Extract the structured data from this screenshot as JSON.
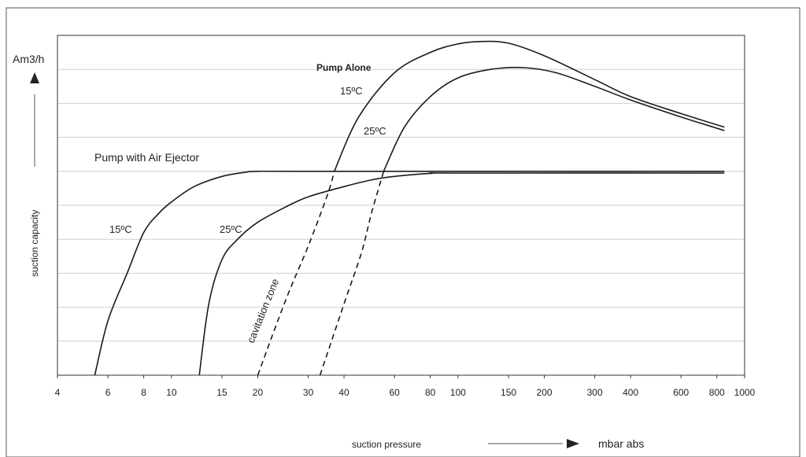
{
  "chart_data": {
    "type": "line",
    "xscale": "log",
    "xlim": [
      4,
      1000
    ],
    "ylim": [
      0,
      10
    ],
    "grid": "horizontal",
    "x_ticks": [
      "4",
      "6",
      "8",
      "10",
      "15",
      "20",
      "30",
      "40",
      "60",
      "80",
      "100",
      "150",
      "200",
      "300",
      "400",
      "600",
      "800",
      "1000"
    ],
    "x_tick_values": [
      4,
      6,
      8,
      10,
      15,
      20,
      30,
      40,
      60,
      80,
      100,
      150,
      200,
      300,
      400,
      600,
      800,
      1000
    ],
    "ylabel_unit": "Am3/h",
    "ylabel": "suction capacity",
    "xlabel": "suction pressure",
    "xlabel_unit": "mbar abs",
    "series": [
      {
        "name": "Pump Alone 15ºC",
        "dash": false,
        "points": [
          [
            37,
            6.0
          ],
          [
            45,
            7.6
          ],
          [
            60,
            8.9
          ],
          [
            80,
            9.5
          ],
          [
            100,
            9.75
          ],
          [
            120,
            9.82
          ],
          [
            150,
            9.77
          ],
          [
            200,
            9.4
          ],
          [
            300,
            8.7
          ],
          [
            400,
            8.2
          ],
          [
            600,
            7.7
          ],
          [
            850,
            7.3
          ]
        ]
      },
      {
        "name": "Pump Alone 25ºC",
        "dash": false,
        "points": [
          [
            55,
            6.0
          ],
          [
            65,
            7.3
          ],
          [
            80,
            8.2
          ],
          [
            100,
            8.75
          ],
          [
            130,
            9.0
          ],
          [
            170,
            9.05
          ],
          [
            220,
            8.9
          ],
          [
            300,
            8.5
          ],
          [
            400,
            8.1
          ],
          [
            600,
            7.6
          ],
          [
            850,
            7.2
          ]
        ]
      },
      {
        "name": "Pump with Air Ejector 15ºC",
        "dash": false,
        "points": [
          [
            5.4,
            0
          ],
          [
            6,
            1.6
          ],
          [
            7,
            3.0
          ],
          [
            8,
            4.2
          ],
          [
            9,
            4.75
          ],
          [
            10,
            5.1
          ],
          [
            12,
            5.55
          ],
          [
            15,
            5.85
          ],
          [
            18,
            5.97
          ],
          [
            20,
            6.0
          ],
          [
            30,
            6.0
          ],
          [
            100,
            6.0
          ],
          [
            850,
            6.0
          ]
        ]
      },
      {
        "name": "Pump with Air Ejector 25ºC",
        "dash": false,
        "points": [
          [
            12.5,
            0
          ],
          [
            13.5,
            2.1
          ],
          [
            15,
            3.4
          ],
          [
            17,
            4.0
          ],
          [
            20,
            4.5
          ],
          [
            25,
            4.95
          ],
          [
            30,
            5.25
          ],
          [
            40,
            5.55
          ],
          [
            50,
            5.75
          ],
          [
            60,
            5.85
          ],
          [
            80,
            5.94
          ],
          [
            100,
            5.95
          ],
          [
            850,
            5.95
          ]
        ]
      },
      {
        "name": "cavitation zone 15ºC",
        "dash": true,
        "points": [
          [
            20,
            0
          ],
          [
            25,
            2.2
          ],
          [
            30,
            3.8
          ],
          [
            35,
            5.3
          ],
          [
            37,
            6.0
          ]
        ]
      },
      {
        "name": "cavitation zone 25ºC",
        "dash": true,
        "points": [
          [
            33,
            0
          ],
          [
            40,
            2.1
          ],
          [
            46,
            3.6
          ],
          [
            50,
            4.8
          ],
          [
            55,
            6.0
          ]
        ]
      }
    ],
    "annotations": [
      {
        "text": "Pump Alone"
      },
      {
        "text": "15ºC"
      },
      {
        "text": "25ºC"
      },
      {
        "text": "Pump with Air Ejector"
      },
      {
        "text": "15ºC"
      },
      {
        "text": "25ºC"
      },
      {
        "text": "cavitation zone"
      }
    ]
  }
}
